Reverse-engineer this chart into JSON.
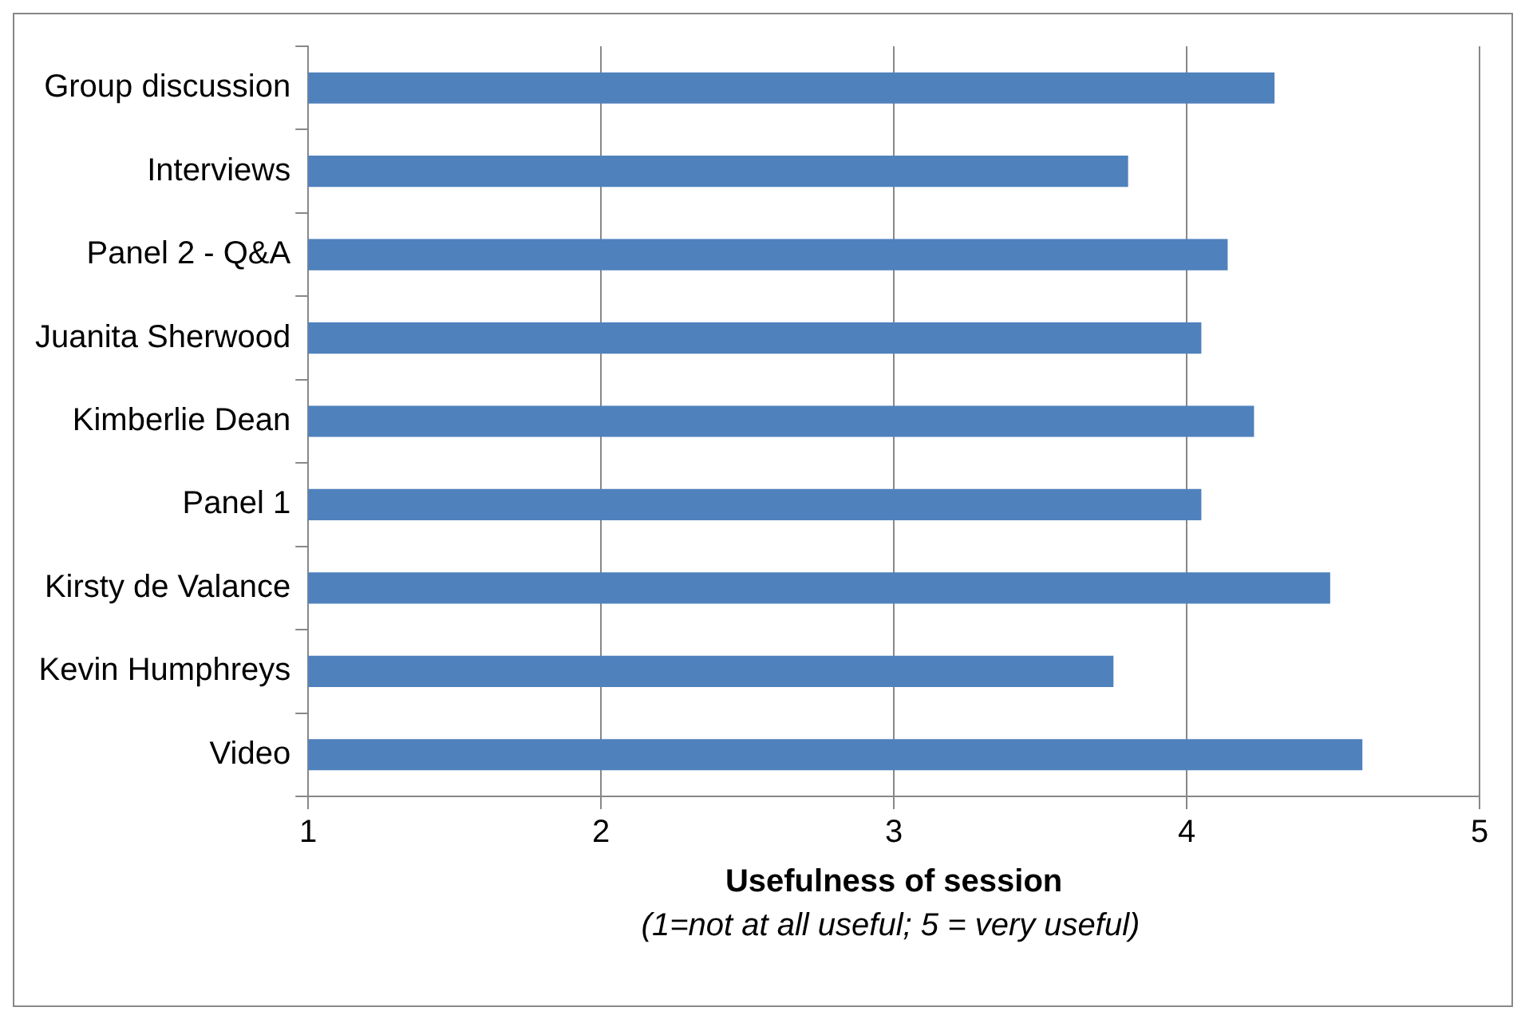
{
  "chart_data": {
    "type": "bar",
    "orientation": "horizontal",
    "categories": [
      "Group discussion",
      "Interviews",
      "Panel 2 - Q&A",
      "Juanita Sherwood",
      "Kimberlie Dean",
      "Panel 1",
      "Kirsty de Valance",
      "Kevin Humphreys",
      "Video"
    ],
    "values": [
      4.3,
      3.8,
      4.14,
      4.05,
      4.23,
      4.05,
      4.49,
      3.75,
      4.6
    ],
    "color": "#4f81bd",
    "xlim": [
      1,
      5
    ],
    "xticks": [
      1,
      2,
      3,
      4,
      5
    ],
    "grid": "x",
    "legend": false,
    "xlabel": "Usefulness of session",
    "annotations": [
      "(1=not at all useful; 5 = very useful)"
    ]
  }
}
